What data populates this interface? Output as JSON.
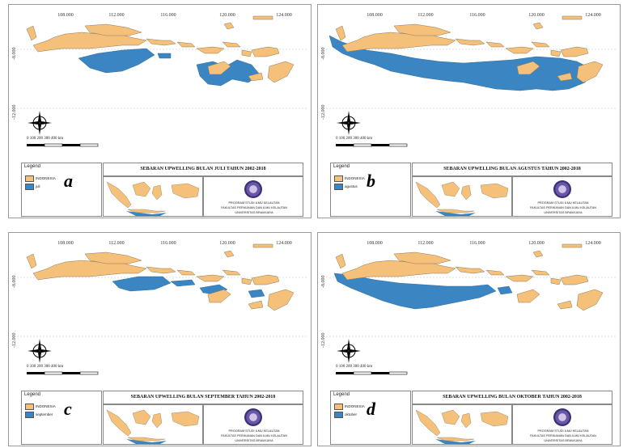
{
  "panels": [
    {
      "id": "a",
      "letter": "a",
      "title": "SEBARAN UPWELLING BULAN JULI TAHUN 2002-2018",
      "legend_title": "Legend",
      "legend_items": [
        "INDONESIA",
        "juli"
      ],
      "upwelling_extent": "medium-east"
    },
    {
      "id": "b",
      "letter": "b",
      "title": "SEBARAN UPWELLING BULAN AGUSTUS TAHUN 2002-2018",
      "legend_title": "Legend",
      "legend_items": [
        "INDONESIA",
        "agustus"
      ],
      "upwelling_extent": "large"
    },
    {
      "id": "c",
      "letter": "c",
      "title": "SEBARAN UPWELLING BULAN SEPTEMBER TAHUN 2002-2018",
      "legend_title": "Legend",
      "legend_items": [
        "INDONESIA",
        "september"
      ],
      "upwelling_extent": "small"
    },
    {
      "id": "d",
      "letter": "d",
      "title": "SEBARAN UPWELLING BULAN OKTOBER TAHUN 2002-2018",
      "legend_title": "Legend",
      "legend_items": [
        "INDONESIA",
        "oktober"
      ],
      "upwelling_extent": "medium-west"
    }
  ],
  "grid_labels_x": [
    "108.000",
    "112.000",
    "116.000",
    "120.000",
    "124.000"
  ],
  "grid_labels_y": [
    "-8.000",
    "-12.000"
  ],
  "scale_bar": "0   100 200    300    400 km",
  "organization": [
    "PROGRAM STUDI ILMU KELAUTAN",
    "FAKULTAS PERIKANAN DAN ILMU KELAUTAN",
    "UNIVERSITAS BRAWIJAYA"
  ],
  "colors": {
    "land": "#f5c07a",
    "upwelling": "#3a85c2",
    "border": "#8a7a5a"
  }
}
